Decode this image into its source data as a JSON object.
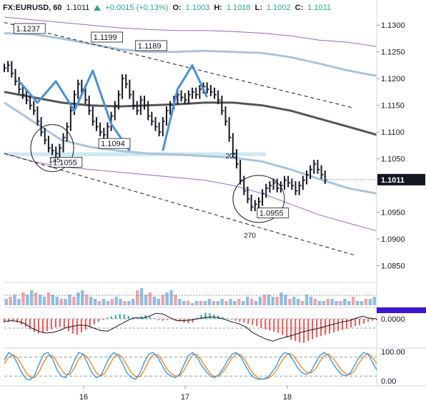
{
  "header": {
    "symbol": "FX:EURUSD, 60",
    "last": "1.1011",
    "change": "+0.0015 (+0.13%)",
    "o_label": "O:",
    "o_value": "1.1003",
    "h_label": "H:",
    "h_value": "1.1018",
    "l_label": "L:",
    "l_value": "1.1002",
    "c_label": "C:",
    "c_value": "1.1011",
    "up_color": "#26a69a"
  },
  "chart_data": [
    {
      "type": "line",
      "name": "price",
      "ylim": [
        1.082,
        1.1315
      ],
      "y_ticks": [
        "1.1300",
        "1.1250",
        "1.1200",
        "1.1150",
        "1.1100",
        "1.1050",
        "1.1011",
        "1.0950",
        "1.0900",
        "1.0850"
      ],
      "x_ticks": [
        "16",
        "17",
        "18"
      ],
      "last_price_label": "1.1011",
      "close": [
        1.122,
        1.1225,
        1.121,
        1.1195,
        1.118,
        1.117,
        1.116,
        1.115,
        1.114,
        1.112,
        1.11,
        1.1085,
        1.107,
        1.1065,
        1.106,
        1.107,
        1.109,
        1.111,
        1.114,
        1.117,
        1.119,
        1.118,
        1.116,
        1.114,
        1.112,
        1.111,
        1.11,
        1.1095,
        1.111,
        1.113,
        1.115,
        1.117,
        1.12,
        1.119,
        1.117,
        1.115,
        1.114,
        1.116,
        1.115,
        1.113,
        1.112,
        1.111,
        1.11,
        1.112,
        1.114,
        1.115,
        1.116,
        1.117,
        1.1165,
        1.116,
        1.117,
        1.1175,
        1.117,
        1.118,
        1.1185,
        1.118,
        1.1175,
        1.117,
        1.116,
        1.114,
        1.112,
        1.109,
        1.106,
        1.104,
        1.101,
        1.099,
        1.0975,
        1.096,
        1.0965,
        1.097,
        1.0985,
        1.0995,
        1.1,
        1.1005,
        1.0995,
        1.1,
        1.101,
        1.1005,
        1.1,
        1.099,
        1.1,
        1.101,
        1.102,
        1.103,
        1.104,
        1.103,
        1.102,
        1.1011
      ],
      "annotations": [
        {
          "text": "1.1237",
          "kind": "high"
        },
        {
          "text": "1.1199",
          "kind": "high"
        },
        {
          "text": "1.1189",
          "kind": "high"
        },
        {
          "text": "1.1094",
          "kind": "low"
        },
        {
          "text": "1.1055",
          "kind": "low"
        },
        {
          "text": "1.0955",
          "kind": "low"
        },
        {
          "text": "135",
          "kind": "angle"
        },
        {
          "text": "202",
          "kind": "angle"
        },
        {
          "text": "270",
          "kind": "angle"
        }
      ],
      "projection_a": [
        1.1195,
        1.1155,
        1.1195,
        1.114,
        1.1215,
        1.1115,
        1.1065
      ],
      "projection_b": [
        1.1065,
        1.118,
        1.1225,
        1.1165
      ],
      "ma_dark": [
        1.1175,
        1.1165,
        1.1155,
        1.115,
        1.1148,
        1.115,
        1.1152,
        1.1155,
        1.1155,
        1.115,
        1.114,
        1.1125,
        1.111,
        1.1095
      ],
      "band_upper": [
        1.1285,
        1.1283,
        1.1275,
        1.1265,
        1.1255,
        1.125,
        1.125,
        1.1252,
        1.125,
        1.1248,
        1.124,
        1.1228,
        1.1215,
        1.1205
      ],
      "band_lower": [
        1.1155,
        1.112,
        1.1085,
        1.1072,
        1.1065,
        1.106,
        1.1058,
        1.1055,
        1.1052,
        1.1045,
        1.103,
        1.1012,
        1.0995,
        1.0985
      ],
      "outer_upper": [
        1.1315,
        1.131,
        1.1305,
        1.13,
        1.1295,
        1.1292,
        1.129,
        1.129,
        1.1288,
        1.1285,
        1.128,
        1.1272,
        1.1268,
        1.126
      ],
      "outer_lower": [
        1.106,
        1.1045,
        1.1035,
        1.103,
        1.1025,
        1.102,
        1.1015,
        1.101,
        1.1,
        1.0985,
        1.0965,
        1.0945,
        1.093,
        1.0915
      ],
      "channel_top_start": 1.1305,
      "channel_top_end": 1.1145,
      "channel_bottom_start": 1.106,
      "channel_bottom_end": 1.087,
      "highlight_zone": [
        1.1055,
        1.1062
      ],
      "colors": {
        "candle": "#131722",
        "projection": "#4a90d9",
        "band": "#a9c4de",
        "ma": "#555555",
        "outer": "#9966cc",
        "zone": "#cde9f2"
      }
    },
    {
      "type": "bar",
      "name": "volume",
      "values": [
        3,
        4,
        5,
        3,
        6,
        5,
        7,
        6,
        5,
        4,
        6,
        5,
        4,
        3,
        3,
        5,
        4,
        6,
        7,
        5,
        4,
        3,
        2,
        3,
        2,
        3,
        4,
        3,
        2,
        2,
        3,
        7,
        8,
        5,
        6,
        4,
        3,
        5,
        6,
        7,
        5,
        3,
        2,
        2,
        1,
        2,
        2,
        2,
        3,
        2,
        2,
        3,
        2,
        3,
        2,
        3,
        2,
        4,
        3,
        2,
        4,
        5,
        5,
        4,
        4,
        6,
        5,
        3,
        4,
        3,
        2,
        5,
        4,
        3,
        2,
        2,
        3,
        3,
        2,
        2,
        3,
        2,
        4,
        2,
        2,
        3,
        3,
        4
      ],
      "ylim": [
        0,
        10
      ],
      "colors": {
        "up": "#90bde6",
        "down": "#f2a3a3"
      }
    },
    {
      "type": "bar",
      "name": "macd",
      "y_ticks": [
        "0.0000"
      ],
      "histogram": [
        -0.6,
        -0.5,
        -0.4,
        -0.6,
        -0.9,
        -1.3,
        -1.7,
        -2.1,
        -2.4,
        -2.3,
        -2.0,
        -1.7,
        -1.4,
        -1.3,
        -1.5,
        -2.0,
        -2.4,
        -2.6,
        -2.2,
        -1.8,
        -1.3,
        -0.9,
        -0.5,
        -0.2,
        0.2,
        0.4,
        0.6,
        0.8,
        0.7,
        0.5,
        0.3,
        0.1,
        0.4,
        0.6,
        0.3,
        0.1,
        -0.2,
        -0.3,
        -0.2,
        -0.1,
        -0.2,
        -0.4,
        -0.6,
        -0.7,
        -0.6,
        0.2,
        0.6,
        1.0,
        0.9,
        0.7,
        0.5,
        0.3,
        0.1,
        -0.1,
        -0.3,
        -0.5,
        -0.6,
        -0.8,
        -1.0,
        -1.2,
        -1.5,
        -1.7,
        -1.9,
        -2.1,
        -2.3,
        -2.6,
        -3.0,
        -3.4,
        -3.6,
        -3.8,
        -3.9,
        -3.6,
        -3.3,
        -3.0,
        -2.8,
        -2.6,
        -2.4,
        -2.2,
        -2.0,
        -1.8,
        -1.6,
        -1.4,
        -1.2,
        -1.0,
        -0.8,
        -0.5,
        -0.3,
        -0.2
      ],
      "line": [
        -0.4,
        -0.3,
        -0.4,
        -0.8,
        -1.5,
        -2.0,
        -2.3,
        -2.2,
        -1.9,
        -1.4,
        -1.2,
        -1.0,
        -1.1,
        -1.5,
        -1.9,
        -2.0,
        -1.4,
        -0.8,
        -0.2,
        0.2,
        0.1,
        0.4,
        0.9,
        0.8,
        0.2,
        -0.3,
        -0.3,
        -0.2,
        0.0,
        0.2,
        0.3,
        0.2,
        -0.1,
        -0.5,
        -0.8,
        -1.3,
        -2.2,
        -2.8,
        -3.3,
        -3.6,
        -3.2,
        -2.9,
        -2.6,
        -2.2,
        -1.9,
        -1.7,
        -1.4,
        -1.1,
        -0.8,
        -0.5,
        -0.3,
        0.1,
        0.4,
        0.1,
        0.0
      ],
      "ylim": [
        -4.5,
        1.5
      ],
      "colors": {
        "up": "#26a69a",
        "down": "#ef5350",
        "line": "#131722"
      },
      "level_badge_color": "#3f17d0"
    },
    {
      "type": "line",
      "name": "stochastic",
      "y_ticks": [
        "100.00",
        "0.00"
      ],
      "ylim": [
        0,
        100
      ],
      "k": [
        70,
        95,
        85,
        60,
        30,
        10,
        8,
        25,
        60,
        90,
        95,
        75,
        40,
        20,
        15,
        35,
        70,
        95,
        90,
        60,
        30,
        15,
        20,
        50,
        80,
        95,
        85,
        60,
        30,
        15,
        10,
        30,
        65,
        90,
        95,
        80,
        55,
        30,
        20,
        15,
        25,
        55,
        85,
        95,
        80,
        55,
        35,
        20,
        15,
        25,
        45,
        70,
        90,
        95,
        80,
        55,
        30,
        15,
        10,
        10,
        15,
        30,
        50,
        80,
        95,
        90,
        70,
        45,
        30,
        25,
        35,
        60,
        85,
        95,
        85,
        60,
        40,
        25,
        20,
        30,
        55,
        80,
        95,
        90,
        65,
        40
      ],
      "d": [
        60,
        80,
        88,
        78,
        55,
        30,
        15,
        15,
        35,
        65,
        85,
        85,
        65,
        40,
        25,
        25,
        45,
        75,
        90,
        80,
        55,
        30,
        20,
        30,
        55,
        80,
        90,
        78,
        55,
        30,
        18,
        18,
        40,
        70,
        88,
        88,
        70,
        45,
        28,
        20,
        20,
        38,
        65,
        88,
        88,
        70,
        48,
        28,
        18,
        20,
        35,
        55,
        78,
        90,
        88,
        70,
        45,
        25,
        14,
        10,
        12,
        20,
        35,
        60,
        82,
        92,
        85,
        65,
        45,
        32,
        30,
        42,
        65,
        85,
        90,
        78,
        58,
        38,
        26,
        25,
        38,
        62,
        82,
        92,
        80,
        60
      ],
      "colors": {
        "k": "#2196f3",
        "d": "#ff7f0e"
      }
    }
  ]
}
